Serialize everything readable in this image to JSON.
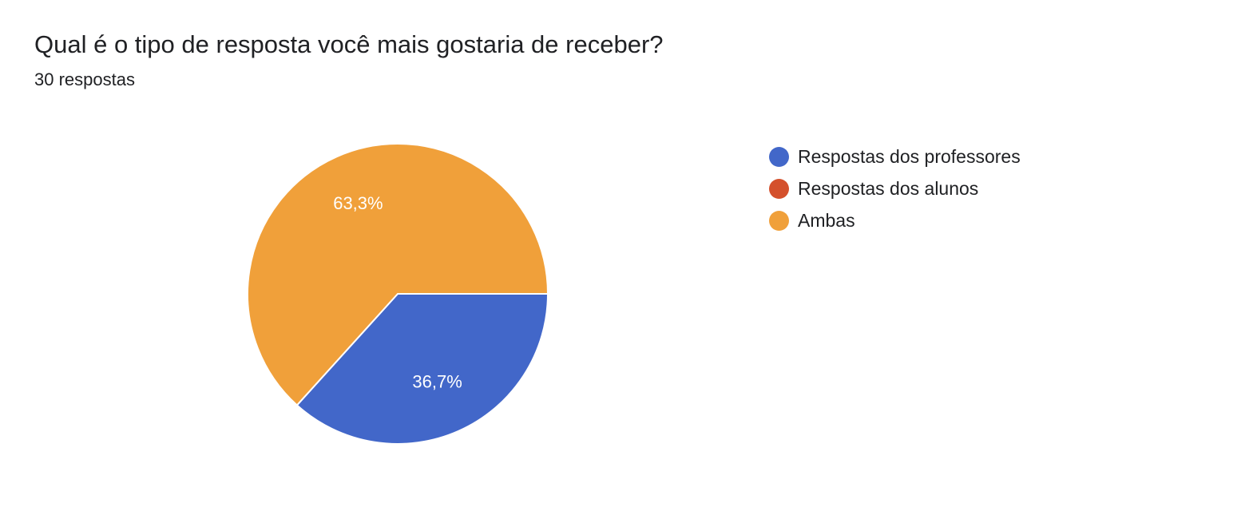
{
  "question": {
    "title": "Qual é o tipo de resposta você mais gostaria de receber?",
    "response_count": "30 respostas"
  },
  "chart_data": {
    "type": "pie",
    "title": "Qual é o tipo de resposta você mais gostaria de receber?",
    "subtitle": "30 respostas",
    "legend_position": "right",
    "slices": [
      {
        "label": "Respostas dos professores",
        "value": 36.7,
        "display": "36,7%",
        "color": "#4267c9"
      },
      {
        "label": "Respostas dos alunos",
        "value": 0,
        "display": "",
        "color": "#d4502c"
      },
      {
        "label": "Ambas",
        "value": 63.3,
        "display": "63,3%",
        "color": "#f0a03a"
      }
    ]
  }
}
